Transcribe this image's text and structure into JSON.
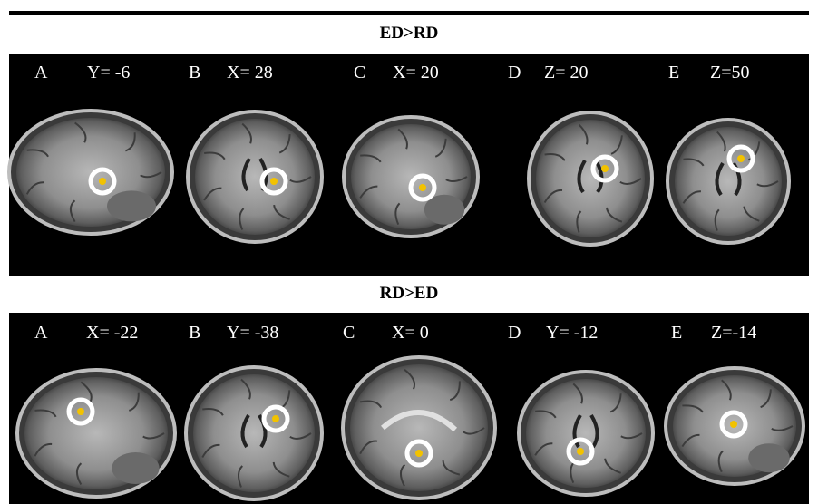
{
  "sections": [
    {
      "title": "ED>RD",
      "panels": [
        {
          "letter": "A",
          "coord": "Y= -6"
        },
        {
          "letter": "B",
          "coord": "X= 28"
        },
        {
          "letter": "C",
          "coord": "X= 20"
        },
        {
          "letter": "D",
          "coord": "Z= 20"
        },
        {
          "letter": "E",
          "coord": "Z=50"
        }
      ]
    },
    {
      "title": "RD>ED",
      "panels": [
        {
          "letter": "A",
          "coord": "X= -22"
        },
        {
          "letter": "B",
          "coord": "Y= -38"
        },
        {
          "letter": "C",
          "coord": "X= 0"
        },
        {
          "letter": "D",
          "coord": "Y= -12"
        },
        {
          "letter": "E",
          "coord": "Z=-14"
        }
      ]
    }
  ]
}
